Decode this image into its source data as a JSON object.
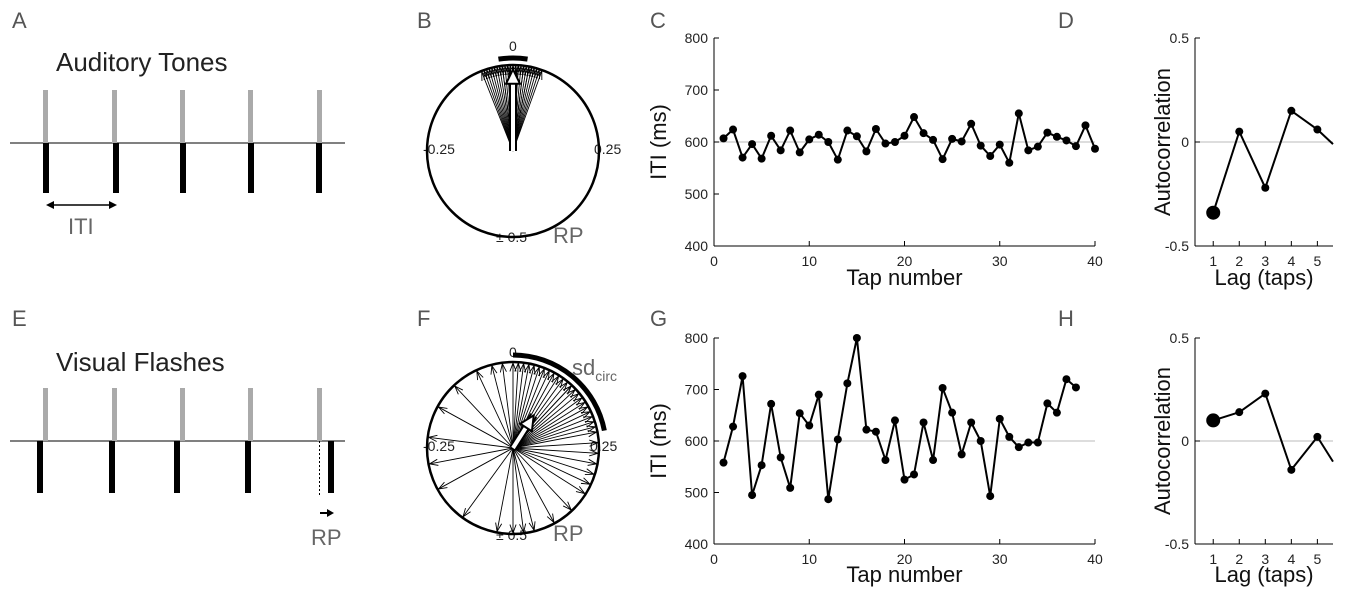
{
  "panels": {
    "A": {
      "letter": "A",
      "title": "Auditory Tones",
      "annotation": "ITI"
    },
    "B": {
      "letter": "B",
      "top": "0",
      "left": "-0.25",
      "right": "0.25",
      "bottom": "± 0.5",
      "label": "RP"
    },
    "E": {
      "letter": "E",
      "title": "Visual Flashes",
      "annotation": "RP"
    },
    "F": {
      "letter": "F",
      "top": "0",
      "left": "-0.25",
      "right": "0.25",
      "bottom": "± 0.5",
      "label": "RP",
      "sd_main": "sd",
      "sd_sub": "circ"
    },
    "C": {
      "letter": "C"
    },
    "D": {
      "letter": "D"
    },
    "G": {
      "letter": "G"
    },
    "H": {
      "letter": "H"
    }
  },
  "colors": {
    "stimulus": "#aaaaaa",
    "tap": "#000000",
    "zero_line": "#bbbbbb",
    "text": "#555555"
  },
  "chart_data": [
    {
      "id": "C",
      "type": "line",
      "xlabel": "Tap number",
      "ylabel": "ITI (ms)",
      "xlim": [
        0,
        40
      ],
      "ylim": [
        400,
        800
      ],
      "xticks": [
        0,
        10,
        20,
        30,
        40
      ],
      "yticks": [
        400,
        500,
        600,
        700,
        800
      ],
      "baseline": 600,
      "x": [
        1,
        2,
        3,
        4,
        5,
        6,
        7,
        8,
        9,
        10,
        11,
        12,
        13,
        14,
        15,
        16,
        17,
        18,
        19,
        20,
        21,
        22,
        23,
        24,
        25,
        26,
        27,
        28,
        29,
        30,
        31,
        32,
        33,
        34,
        35,
        36,
        37,
        38,
        39,
        40
      ],
      "y": [
        607,
        624,
        570,
        596,
        568,
        612,
        584,
        622,
        580,
        605,
        614,
        600,
        566,
        622,
        611,
        582,
        625,
        597,
        600,
        612,
        648,
        617,
        604,
        567,
        606,
        601,
        635,
        593,
        573,
        595,
        560,
        655,
        584,
        591,
        618,
        610,
        603,
        592,
        632,
        587
      ]
    },
    {
      "id": "D",
      "type": "line",
      "xlabel": "Lag (taps)",
      "ylabel": "Autocorrelation",
      "xlim": [
        0.3,
        5.6
      ],
      "ylim": [
        -0.5,
        0.5
      ],
      "xticks": [
        1,
        2,
        3,
        4,
        5
      ],
      "yticks": [
        -0.5,
        0,
        0.5
      ],
      "x": [
        1,
        2,
        3,
        4,
        5,
        5.6
      ],
      "y": [
        -0.34,
        0.05,
        -0.22,
        0.15,
        0.06,
        -0.01
      ],
      "highlight_first_point": true
    },
    {
      "id": "G",
      "type": "line",
      "xlabel": "Tap number",
      "ylabel": "ITI (ms)",
      "xlim": [
        0,
        40
      ],
      "ylim": [
        400,
        800
      ],
      "xticks": [
        0,
        10,
        20,
        30,
        40
      ],
      "yticks": [
        400,
        500,
        600,
        700,
        800
      ],
      "baseline": 600,
      "x": [
        1,
        2,
        3,
        4,
        5,
        6,
        7,
        8,
        9,
        10,
        11,
        12,
        13,
        14,
        15,
        16,
        17,
        18,
        19,
        20,
        21,
        22,
        23,
        24,
        25,
        26,
        27,
        28,
        29,
        30,
        31,
        32,
        33,
        34,
        35,
        36,
        37,
        38
      ],
      "y": [
        558,
        628,
        726,
        495,
        553,
        672,
        568,
        509,
        654,
        630,
        690,
        487,
        603,
        712,
        800,
        622,
        618,
        563,
        640,
        525,
        535,
        636,
        563,
        703,
        655,
        574,
        636,
        600,
        493,
        643,
        608,
        588,
        597,
        597,
        673,
        655,
        720,
        704
      ]
    },
    {
      "id": "H",
      "type": "line",
      "xlabel": "Lag (taps)",
      "ylabel": "Autocorrelation",
      "xlim": [
        0.3,
        5.6
      ],
      "ylim": [
        -0.5,
        0.5
      ],
      "xticks": [
        1,
        2,
        3,
        4,
        5
      ],
      "yticks": [
        -0.5,
        0,
        0.5
      ],
      "x": [
        1,
        2,
        3,
        4,
        5,
        5.6
      ],
      "y": [
        0.1,
        0.14,
        0.23,
        -0.14,
        0.02,
        -0.1
      ],
      "highlight_first_point": true
    },
    {
      "id": "B",
      "type": "circular",
      "units": "cycles",
      "vectors": [
        -0.06,
        -0.05,
        -0.045,
        -0.04,
        -0.035,
        -0.03,
        -0.025,
        -0.02,
        -0.015,
        -0.01,
        -0.005,
        0.0,
        0.005,
        0.01,
        0.015,
        0.02,
        0.025,
        0.03,
        0.035,
        0.04,
        0.045,
        0.05,
        -0.055,
        0.055,
        -0.02,
        0.0,
        0.02,
        -0.01,
        0.01,
        0.03
      ],
      "mean_direction": 0.0,
      "mean_length": 0.95
    },
    {
      "id": "F",
      "type": "circular",
      "units": "cycles",
      "vectors": [
        0.01,
        0.03,
        0.05,
        0.06,
        0.08,
        0.09,
        0.1,
        0.11,
        0.12,
        0.13,
        0.14,
        0.15,
        0.16,
        0.17,
        0.18,
        0.19,
        0.2,
        0.21,
        0.22,
        0.24,
        0.26,
        0.28,
        0.3,
        0.32,
        0.34,
        0.38,
        0.42,
        0.46,
        0.48,
        0.5,
        -0.47,
        -0.4,
        -0.33,
        -0.28,
        -0.23,
        -0.17,
        -0.12,
        -0.07,
        -0.04,
        -0.02,
        0.0,
        0.02,
        0.04,
        0.07,
        0.12
      ],
      "mean_direction": 0.09,
      "mean_length": 0.45,
      "sd_arc": [
        0.0,
        0.22
      ]
    }
  ]
}
